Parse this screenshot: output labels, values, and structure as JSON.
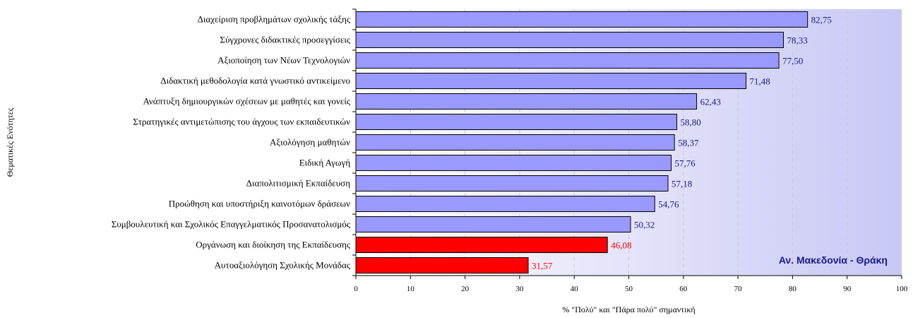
{
  "chart_data": {
    "type": "bar",
    "orientation": "horizontal",
    "ylabel": "Θεματικές Ενότητες",
    "xlabel": "% \"Πολύ\" και \"Πάρα πολύ\" σημαντική",
    "annotation": "Αν. Μακεδονία - Θράκη",
    "xlim": [
      0,
      100
    ],
    "x_ticks": [
      "0",
      "10",
      "20",
      "30",
      "40",
      "50",
      "60",
      "70",
      "80",
      "90",
      "100"
    ],
    "grid": "vertical dashed",
    "categories": [
      "Διαχείριση προβλημάτων σχολικής τάξης",
      "Σύγχρονες διδακτικές προσεγγίσεις",
      "Αξιοποίηση των Νέων Τεχνολογιών",
      "Διδακτική μεθοδολογία κατά γνωστικό αντικείμενο",
      "Ανάπτυξη δημιουργικών σχέσεων με μαθητές και γονείς",
      "Στρατηγικές αντιμετώπισης του άγχους των εκπαιδευτικών",
      "Αξιολόγηση μαθητών",
      "Ειδική Αγωγή",
      "Διαπολιτισμική Εκπαίδευση",
      "Προώθηση και υποστήριξη καινοτόμων δράσεων",
      "Συμβουλευτική και Σχολικός Επαγγελματικός Προσανατολισμός",
      "Οργάνωση και διοίκηση της Εκπαίδευσης",
      "Αυτοαξιολόγηση Σχολικής Μονάδας"
    ],
    "values": [
      82.75,
      78.33,
      77.5,
      71.48,
      62.43,
      58.8,
      58.37,
      57.76,
      57.18,
      54.76,
      50.32,
      46.08,
      31.57
    ],
    "value_labels": [
      "82,75",
      "78,33",
      "77,50",
      "71,48",
      "62,43",
      "58,80",
      "58,37",
      "57,76",
      "57,18",
      "54,76",
      "50,32",
      "46,08",
      "31,57"
    ],
    "highlighted": [
      false,
      false,
      false,
      false,
      false,
      false,
      false,
      false,
      false,
      false,
      false,
      true,
      true
    ],
    "colors": {
      "bar": "#9999ff",
      "bar_highlight": "#ff0000",
      "label": "#1a1a8c",
      "label_highlight": "#ff0000",
      "gradient_start": "#ffffff",
      "gradient_end": "#c8c8f5",
      "grid": "#c8c8d8"
    }
  }
}
